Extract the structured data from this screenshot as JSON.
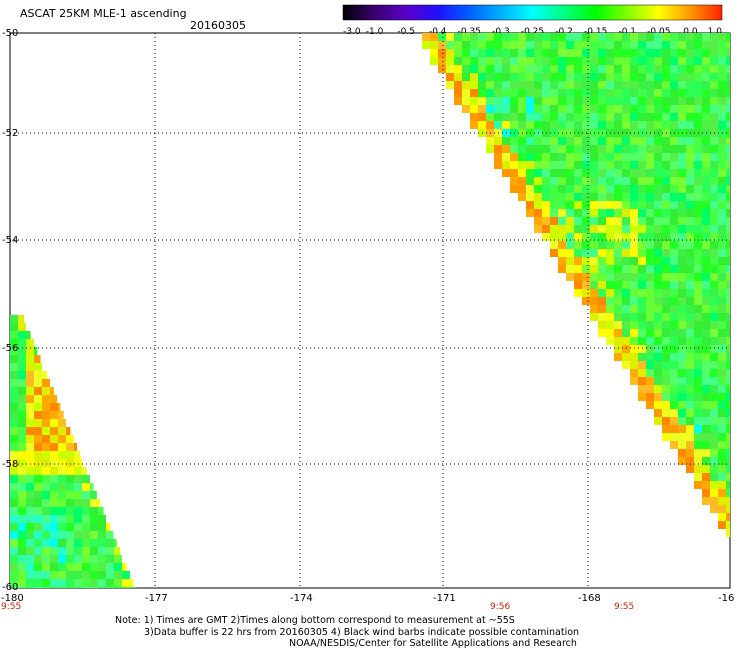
{
  "header": {
    "title": "ASCAT 25KM MLE-1 ascending",
    "date": "20160305"
  },
  "colorbar": {
    "ticks": [
      "-3.0",
      "-1.0",
      "-0.5",
      "-0.4",
      "-0.35",
      "-0.3",
      "-0.25",
      "-0.2",
      "-0.15",
      "-0.1",
      "-0.05",
      "0.0",
      "1.0"
    ],
    "colors": [
      "#000000",
      "#3a0070",
      "#5a00c8",
      "#2010ff",
      "#0060ff",
      "#00b0ff",
      "#00ffff",
      "#00ff80",
      "#00ff00",
      "#80ff00",
      "#ffff00",
      "#ff9900",
      "#ff2000"
    ]
  },
  "map": {
    "lat_labels": [
      "-50",
      "-52",
      "-54",
      "-56",
      "-58",
      "-60"
    ],
    "lon_labels": [
      "-180",
      "-177",
      "-174",
      "-171",
      "-168",
      "-16"
    ],
    "time_labels": [
      "9:55",
      "9:56",
      "9:55"
    ]
  },
  "notes": {
    "line1": "Note: 1) Times are GMT 2)Times along bottom correspond to measurement at ~55S",
    "line2": "3)Data buffer is 22 hrs from 20160305 4) Black wind barbs indicate possible contamination",
    "line3": "NOAA/NESDIS/Center for Satellite Applications and Research"
  }
}
